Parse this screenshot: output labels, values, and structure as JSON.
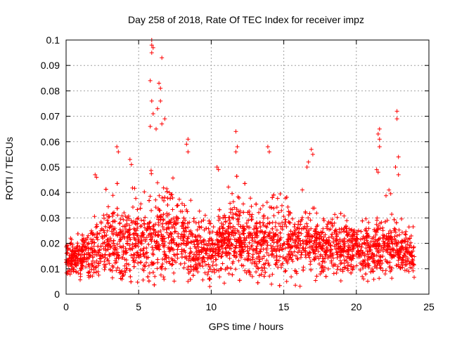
{
  "chart_data": {
    "type": "scatter",
    "title": "Day 258 of 2018, Rate Of TEC Index for receiver impz",
    "xlabel": "GPS time / hours",
    "ylabel": "ROTI / TECUs",
    "xlim": [
      0,
      25
    ],
    "ylim": [
      0,
      0.1
    ],
    "x_ticks": [
      0,
      5,
      10,
      15,
      20,
      25
    ],
    "x_tick_labels": [
      "0",
      "5",
      "10",
      "15",
      "20",
      "25"
    ],
    "y_ticks": [
      0,
      0.01,
      0.02,
      0.03,
      0.04,
      0.05,
      0.06,
      0.07,
      0.08,
      0.09,
      0.1
    ],
    "y_tick_labels": [
      "0",
      "0.01",
      "0.02",
      "0.03",
      "0.04",
      "0.05",
      "0.06",
      "0.07",
      "0.08",
      "0.09",
      "0.1"
    ],
    "grid": true,
    "marker": "+",
    "color": "#ff0000",
    "x_range_of_data": [
      0,
      24
    ],
    "envelope": [
      {
        "t": 0,
        "center": 0.014,
        "spread": 0.005
      },
      {
        "t": 1,
        "center": 0.014,
        "spread": 0.006
      },
      {
        "t": 2,
        "center": 0.017,
        "spread": 0.01
      },
      {
        "t": 3,
        "center": 0.02,
        "spread": 0.013
      },
      {
        "t": 4,
        "center": 0.02,
        "spread": 0.013
      },
      {
        "t": 5,
        "center": 0.019,
        "spread": 0.012
      },
      {
        "t": 6,
        "center": 0.024,
        "spread": 0.017
      },
      {
        "t": 7,
        "center": 0.024,
        "spread": 0.014
      },
      {
        "t": 8,
        "center": 0.021,
        "spread": 0.012
      },
      {
        "t": 9,
        "center": 0.018,
        "spread": 0.01
      },
      {
        "t": 10,
        "center": 0.017,
        "spread": 0.009
      },
      {
        "t": 11,
        "center": 0.021,
        "spread": 0.012
      },
      {
        "t": 12,
        "center": 0.022,
        "spread": 0.013
      },
      {
        "t": 13,
        "center": 0.02,
        "spread": 0.011
      },
      {
        "t": 14,
        "center": 0.02,
        "spread": 0.012
      },
      {
        "t": 15,
        "center": 0.022,
        "spread": 0.013
      },
      {
        "t": 16,
        "center": 0.021,
        "spread": 0.012
      },
      {
        "t": 17,
        "center": 0.02,
        "spread": 0.011
      },
      {
        "t": 18,
        "center": 0.019,
        "spread": 0.01
      },
      {
        "t": 19,
        "center": 0.018,
        "spread": 0.009
      },
      {
        "t": 20,
        "center": 0.017,
        "spread": 0.008
      },
      {
        "t": 21,
        "center": 0.018,
        "spread": 0.009
      },
      {
        "t": 22,
        "center": 0.019,
        "spread": 0.01
      },
      {
        "t": 23,
        "center": 0.018,
        "spread": 0.009
      },
      {
        "t": 24,
        "center": 0.015,
        "spread": 0.006
      }
    ],
    "notable_points": [
      {
        "x": 5.9,
        "y": 0.1
      },
      {
        "x": 5.9,
        "y": 0.098
      },
      {
        "x": 5.9,
        "y": 0.095
      },
      {
        "x": 6.0,
        "y": 0.097
      },
      {
        "x": 6.6,
        "y": 0.093
      },
      {
        "x": 5.8,
        "y": 0.084
      },
      {
        "x": 6.4,
        "y": 0.083
      },
      {
        "x": 6.5,
        "y": 0.081
      },
      {
        "x": 5.9,
        "y": 0.076
      },
      {
        "x": 6.5,
        "y": 0.076
      },
      {
        "x": 6.3,
        "y": 0.073
      },
      {
        "x": 6.0,
        "y": 0.071
      },
      {
        "x": 6.8,
        "y": 0.069
      },
      {
        "x": 6.6,
        "y": 0.067
      },
      {
        "x": 5.8,
        "y": 0.066
      },
      {
        "x": 6.2,
        "y": 0.065
      },
      {
        "x": 22.8,
        "y": 0.072
      },
      {
        "x": 22.8,
        "y": 0.069
      },
      {
        "x": 21.6,
        "y": 0.065
      },
      {
        "x": 21.5,
        "y": 0.063
      },
      {
        "x": 21.6,
        "y": 0.061
      },
      {
        "x": 21.6,
        "y": 0.058
      },
      {
        "x": 11.7,
        "y": 0.064
      },
      {
        "x": 8.4,
        "y": 0.061
      },
      {
        "x": 8.3,
        "y": 0.059
      },
      {
        "x": 8.4,
        "y": 0.056
      },
      {
        "x": 3.5,
        "y": 0.058
      },
      {
        "x": 3.6,
        "y": 0.056
      },
      {
        "x": 13.9,
        "y": 0.058
      },
      {
        "x": 14.0,
        "y": 0.056
      },
      {
        "x": 11.8,
        "y": 0.058
      },
      {
        "x": 11.7,
        "y": 0.056
      },
      {
        "x": 16.9,
        "y": 0.057
      },
      {
        "x": 17.0,
        "y": 0.055
      },
      {
        "x": 22.9,
        "y": 0.054
      },
      {
        "x": 22.7,
        "y": 0.05
      },
      {
        "x": 22.9,
        "y": 0.047
      },
      {
        "x": 21.4,
        "y": 0.049
      },
      {
        "x": 21.5,
        "y": 0.048
      },
      {
        "x": 16.7,
        "y": 0.052
      },
      {
        "x": 16.6,
        "y": 0.05
      },
      {
        "x": 4.4,
        "y": 0.053
      },
      {
        "x": 4.5,
        "y": 0.051
      },
      {
        "x": 10.4,
        "y": 0.05
      },
      {
        "x": 10.5,
        "y": 0.049
      },
      {
        "x": 2.0,
        "y": 0.047
      },
      {
        "x": 2.1,
        "y": 0.046
      },
      {
        "x": 0.1,
        "y": 0.008
      },
      {
        "x": 1.0,
        "y": 0.007
      },
      {
        "x": 9.9,
        "y": 0.003
      },
      {
        "x": 8.4,
        "y": 0.005
      },
      {
        "x": 15.2,
        "y": 0.005
      },
      {
        "x": 20.5,
        "y": 0.006
      }
    ]
  }
}
